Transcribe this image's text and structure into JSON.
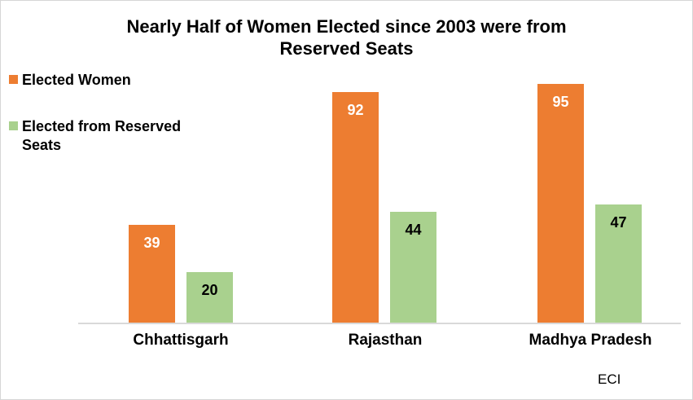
{
  "title_lines": {
    "line1": "Nearly Half of Women Elected since 2003 were from",
    "line2": "Reserved Seats"
  },
  "legend": {
    "items": [
      {
        "label": "Elected Women",
        "color": "#ED7D31"
      },
      {
        "label": "Elected from Reserved Seats",
        "color": "#A9D18E"
      }
    ]
  },
  "source": "ECI",
  "chart_data": {
    "type": "bar",
    "title": "Nearly Half of Women Elected since 2003 were from Reserved Seats",
    "categories": [
      "Chhattisgarh",
      "Rajasthan",
      "Madhya Pradesh"
    ],
    "series": [
      {
        "name": "Elected Women",
        "color": "#ED7D31",
        "label_color": "#FFFFFF",
        "values": [
          39,
          92,
          95
        ]
      },
      {
        "name": "Elected from Reserved Seats",
        "color": "#A9D18E",
        "label_color": "#000000",
        "values": [
          20,
          44,
          47
        ]
      }
    ],
    "xlabel": "",
    "ylabel": "",
    "ylim": [
      0,
      100
    ],
    "grid": false,
    "y_axis_visible": false,
    "legend_position": "top-left",
    "axis_line_color": "#D9D9D9",
    "source_note": "ECI"
  }
}
